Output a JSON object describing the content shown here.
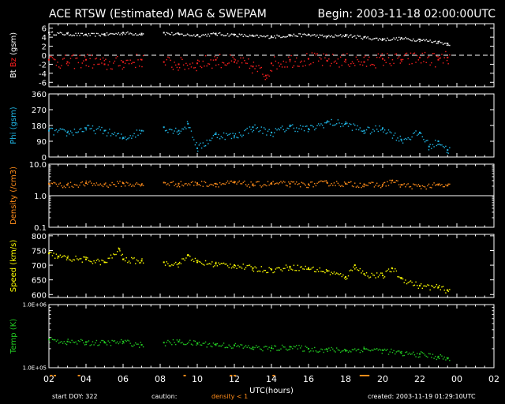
{
  "header": {
    "title": "ACE RTSW (Estimated) MAG & SWEPAM",
    "begin": "Begin: 2003-11-18 02:00:00UTC"
  },
  "footer": {
    "start_doy": "start DOY: 322",
    "caution": "caution:",
    "density_warning": "density < 1",
    "created": "created: 2003-11-19 01:29:10UTC"
  },
  "colors": {
    "bt": "#ffffff",
    "bz": "#ff2020",
    "phi": "#20b8e8",
    "density": "#ff8c1a",
    "speed": "#ffff00",
    "temp": "#22cc22",
    "frame": "#ffffff",
    "caution_marks": "#ff8c1a"
  },
  "chart_data": [
    {
      "type": "scatter",
      "panel": "mag",
      "ylabel_parts": [
        "Bt",
        "Bz",
        "(gsm)"
      ],
      "yticks": [
        "6",
        "4",
        "2",
        "0",
        "-2",
        "-4",
        "-6"
      ],
      "ylim": [
        -7,
        7
      ],
      "zero_line": "dashed",
      "series": [
        {
          "name": "Bt",
          "x": [
            2.0,
            3.0,
            4.0,
            5.0,
            6.0,
            7.0,
            8.2,
            9.0,
            10.0,
            11.0,
            12.0,
            13.0,
            14.0,
            15.0,
            16.0,
            17.0,
            18.0,
            19.0,
            20.0,
            21.0,
            22.0,
            23.0,
            23.5
          ],
          "y": [
            5.0,
            4.8,
            4.6,
            4.7,
            5.0,
            4.8,
            5.0,
            4.7,
            4.5,
            4.8,
            4.6,
            4.3,
            4.2,
            4.5,
            4.6,
            4.2,
            4.5,
            4.0,
            3.6,
            3.8,
            3.5,
            3.0,
            2.6
          ]
        },
        {
          "name": "Bz",
          "x": [
            2.0,
            3.0,
            4.0,
            5.0,
            6.0,
            7.0,
            8.2,
            9.0,
            10.0,
            11.0,
            12.0,
            13.0,
            13.7,
            14.0,
            15.0,
            16.0,
            17.0,
            18.0,
            19.0,
            20.0,
            21.0,
            22.0,
            23.0,
            23.5
          ],
          "y": [
            -1.0,
            -1.5,
            -1.0,
            -2.0,
            -1.5,
            -1.0,
            -1.5,
            -2.0,
            -1.8,
            -1.0,
            -1.5,
            -2.5,
            -4.5,
            -1.8,
            -1.0,
            -0.8,
            -1.2,
            -1.0,
            -1.5,
            -0.8,
            -1.0,
            -0.5,
            -1.0,
            -0.5
          ]
        }
      ]
    },
    {
      "type": "scatter",
      "panel": "phi",
      "ylabel": "Phi (gsm)",
      "yticks": [
        "360",
        "270",
        "180",
        "90",
        "0"
      ],
      "ylim": [
        0,
        360
      ],
      "series": [
        {
          "name": "Phi",
          "x": [
            2.0,
            3.0,
            4.0,
            5.0,
            6.0,
            7.0,
            8.2,
            9.0,
            9.5,
            10.0,
            11.0,
            12.0,
            13.0,
            14.0,
            15.0,
            16.0,
            17.0,
            18.0,
            19.0,
            20.0,
            21.0,
            22.0,
            22.5,
            23.0,
            23.5
          ],
          "y": [
            150,
            140,
            165,
            150,
            110,
            150,
            170,
            150,
            190,
            50,
            130,
            120,
            170,
            140,
            175,
            160,
            200,
            190,
            150,
            165,
            100,
            140,
            60,
            90,
            40
          ]
        }
      ]
    },
    {
      "type": "scatter",
      "panel": "density",
      "ylabel": "Density (/cm3)",
      "yticks": [
        "10.0",
        "1.0",
        "0.1"
      ],
      "ylim": [
        0.1,
        10
      ],
      "yscale": "log",
      "reference_line": 1.0,
      "series": [
        {
          "name": "Density",
          "x": [
            2.0,
            3.0,
            4.0,
            5.0,
            6.0,
            7.0,
            8.2,
            9.0,
            10.0,
            11.0,
            12.0,
            13.0,
            14.0,
            15.0,
            16.0,
            17.0,
            18.0,
            19.0,
            20.0,
            20.5,
            21.0,
            22.0,
            23.0,
            23.5
          ],
          "y": [
            2.4,
            2.2,
            2.5,
            2.3,
            2.5,
            2.2,
            2.6,
            2.4,
            2.5,
            2.4,
            2.6,
            2.3,
            2.5,
            2.4,
            2.3,
            2.6,
            2.4,
            2.3,
            2.2,
            3.0,
            2.2,
            2.0,
            2.2,
            2.1
          ]
        }
      ]
    },
    {
      "type": "scatter",
      "panel": "speed",
      "ylabel": "Speed (km/s)",
      "yticks": [
        "800",
        "750",
        "700",
        "650",
        "600"
      ],
      "ylim": [
        590,
        805
      ],
      "series": [
        {
          "name": "Speed",
          "x": [
            2.0,
            2.5,
            3.0,
            4.0,
            5.0,
            5.8,
            6.0,
            7.0,
            8.2,
            9.0,
            9.5,
            10.0,
            11.0,
            12.0,
            13.0,
            14.0,
            15.0,
            16.0,
            17.0,
            18.0,
            18.5,
            19.0,
            20.0,
            20.5,
            21.0,
            22.0,
            23.0,
            23.5
          ],
          "y": [
            740,
            730,
            725,
            720,
            710,
            755,
            720,
            715,
            710,
            705,
            735,
            710,
            705,
            700,
            690,
            685,
            695,
            690,
            680,
            660,
            700,
            670,
            665,
            690,
            655,
            630,
            625,
            615
          ]
        }
      ]
    },
    {
      "type": "scatter",
      "panel": "temp",
      "ylabel": "Temp (K)",
      "yticks": [
        "1.0E+06",
        "1.0E+05"
      ],
      "ylim": [
        100000,
        1000000
      ],
      "yscale": "log",
      "series": [
        {
          "name": "Temp",
          "x": [
            2.0,
            3.0,
            4.0,
            5.0,
            6.0,
            7.0,
            8.2,
            9.0,
            10.0,
            11.0,
            12.0,
            13.0,
            14.0,
            15.0,
            16.0,
            17.0,
            18.0,
            19.0,
            20.0,
            21.0,
            22.0,
            23.0,
            23.5
          ],
          "y": [
            280000,
            260000,
            255000,
            250000,
            260000,
            230000,
            250000,
            260000,
            245000,
            235000,
            225000,
            210000,
            205000,
            215000,
            200000,
            195000,
            190000,
            200000,
            190000,
            170000,
            165000,
            150000,
            140000
          ]
        }
      ]
    }
  ],
  "x_axis": {
    "label": "UTC(hours)",
    "range": [
      2,
      26
    ],
    "ticks": [
      {
        "v": 2,
        "t": "02"
      },
      {
        "v": 4,
        "t": "04"
      },
      {
        "v": 6,
        "t": "06"
      },
      {
        "v": 8,
        "t": "08"
      },
      {
        "v": 10,
        "t": "10"
      },
      {
        "v": 12,
        "t": "12"
      },
      {
        "v": 14,
        "t": "14"
      },
      {
        "v": 16,
        "t": "16"
      },
      {
        "v": 18,
        "t": "18"
      },
      {
        "v": 20,
        "t": "20"
      },
      {
        "v": 22,
        "t": "22"
      },
      {
        "v": 24,
        "t": "00"
      },
      {
        "v": 26,
        "t": "02"
      }
    ],
    "data_gap": [
      7.1,
      8.2
    ],
    "data_end": 23.6,
    "caution_hours": [
      2.1,
      2.3,
      3.6,
      9.3,
      11.8,
      12.0,
      14.1,
      18.8,
      18.9,
      19.0,
      19.1,
      19.2
    ]
  }
}
